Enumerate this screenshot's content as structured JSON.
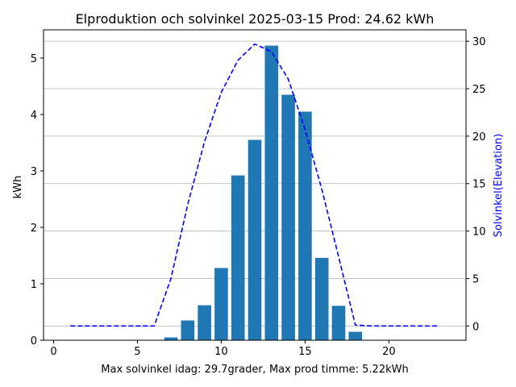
{
  "chart_data": {
    "type": "bar",
    "title": "Elproduktion och solvinkel 2025-03-15 Prod: 24.62 kWh",
    "xlabel": "Max solvinkel idag: 29.7grader, Max prod timme: 5.22kWh",
    "ylabel": "kWh",
    "y2label": "Solvinkel(Elevation)",
    "xlim": [
      -0.6,
      24.6
    ],
    "ylim": [
      0,
      5.5
    ],
    "y2lim": [
      -1.5,
      31.2
    ],
    "xticks": [
      0,
      5,
      10,
      15,
      20
    ],
    "yticks": [
      0,
      1,
      2,
      3,
      4,
      5
    ],
    "y2ticks": [
      0,
      5,
      10,
      15,
      20,
      25,
      30
    ],
    "grid": "horizontal lines at right-axis ticks",
    "bar_series": {
      "name": "kWh",
      "color": "#1f77b4",
      "x": [
        7,
        8,
        9,
        10,
        11,
        12,
        13,
        14,
        15,
        16,
        17,
        18
      ],
      "values": [
        0.05,
        0.35,
        0.62,
        1.28,
        2.92,
        3.55,
        5.22,
        4.35,
        4.05,
        1.46,
        0.61,
        0.15
      ]
    },
    "line_series": {
      "name": "Solvinkel",
      "axis": "right",
      "color": "#0000ff",
      "style": "dashed",
      "x": [
        1,
        2,
        3,
        4,
        5,
        6,
        7,
        8,
        9,
        10,
        11,
        12,
        13,
        14,
        15,
        16,
        17,
        18,
        19,
        20,
        21,
        22,
        23
      ],
      "values": [
        0,
        0,
        0,
        0,
        0,
        0,
        5.0,
        12.8,
        19.4,
        24.6,
        28.0,
        29.7,
        28.9,
        26.0,
        20.7,
        14.4,
        7.3,
        0.1,
        0,
        0,
        0,
        0,
        0
      ]
    }
  }
}
